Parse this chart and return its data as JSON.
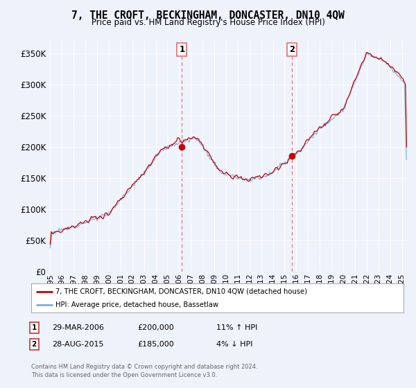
{
  "title": "7, THE CROFT, BECKINGHAM, DONCASTER, DN10 4QW",
  "subtitle": "Price paid vs. HM Land Registry's House Price Index (HPI)",
  "ylabel_ticks": [
    "£0",
    "£50K",
    "£100K",
    "£150K",
    "£200K",
    "£250K",
    "£300K",
    "£350K"
  ],
  "ytick_values": [
    0,
    50000,
    100000,
    150000,
    200000,
    250000,
    300000,
    350000
  ],
  "ylim": [
    0,
    370000
  ],
  "xlim_start": 1994.8,
  "xlim_end": 2025.5,
  "sale1_date": 2006.24,
  "sale1_price": 200000,
  "sale1_label": "1",
  "sale1_text": "29-MAR-2006",
  "sale1_price_text": "£200,000",
  "sale1_hpi_text": "11% ↑ HPI",
  "sale2_date": 2015.65,
  "sale2_price": 185000,
  "sale2_label": "2",
  "sale2_text": "28-AUG-2015",
  "sale2_price_text": "£185,000",
  "sale2_hpi_text": "4% ↓ HPI",
  "legend_line1": "7, THE CROFT, BECKINGHAM, DONCASTER, DN10 4QW (detached house)",
  "legend_line2": "HPI: Average price, detached house, Bassetlaw",
  "footer": "Contains HM Land Registry data © Crown copyright and database right 2024.\nThis data is licensed under the Open Government Licence v3.0.",
  "line_color_red": "#cc0000",
  "line_color_blue": "#7aacdc",
  "vline_color": "#e87878",
  "background_color": "#eef2fb",
  "grid_color": "#ffffff"
}
